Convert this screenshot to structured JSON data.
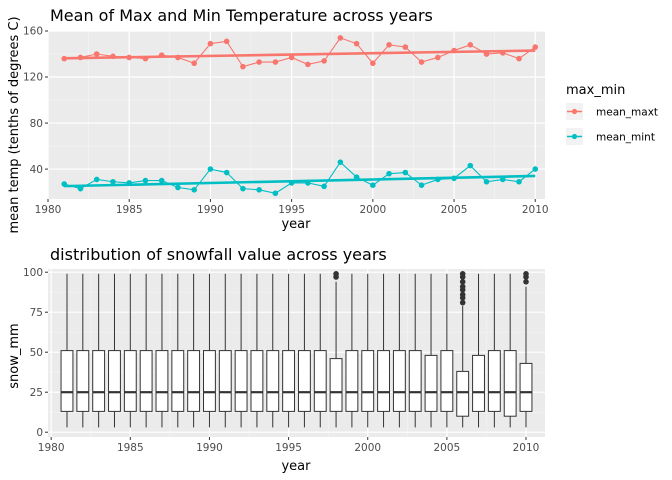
{
  "chart_data": [
    {
      "type": "line",
      "title": "Mean of Max and Min Temperature across years",
      "xlabel": "year",
      "ylabel": "mean temp (tenths of degrees C)",
      "xlim": [
        1980,
        2010.6
      ],
      "ylim": [
        14,
        160
      ],
      "xticks": [
        1980,
        1985,
        1990,
        1995,
        2000,
        2005,
        2010
      ],
      "yticks": [
        40,
        80,
        120,
        160
      ],
      "grid": true,
      "legend_title": "max_min",
      "legend_position": "right",
      "x": [
        1981,
        1982,
        1983,
        1984,
        1985,
        1986,
        1987,
        1988,
        1989,
        1990,
        1991,
        1992,
        1993,
        1994,
        1995,
        1996,
        1997,
        1998,
        1999,
        2000,
        2001,
        2002,
        2003,
        2004,
        2005,
        2006,
        2007,
        2008,
        2009,
        2010
      ],
      "series": [
        {
          "name": "mean_maxt",
          "color": "#F8766D",
          "values": [
            136,
            137,
            140,
            138,
            137,
            136,
            139,
            137,
            132,
            149,
            151,
            129,
            133,
            133,
            137,
            131,
            134,
            154,
            149,
            132,
            148,
            146,
            133,
            137,
            143,
            148,
            140,
            141,
            136,
            146
          ],
          "trend": [
            136.3,
            143.0
          ]
        },
        {
          "name": "mean_mint",
          "color": "#00BFC4",
          "values": [
            27,
            23,
            31,
            29,
            28,
            30,
            30,
            24,
            22,
            40,
            37,
            23,
            22,
            19,
            28,
            28,
            25,
            46,
            33,
            26,
            36,
            37,
            26,
            31,
            32,
            43,
            29,
            31,
            29,
            40
          ],
          "trend": [
            25.2,
            34.0
          ]
        }
      ]
    },
    {
      "type": "box",
      "title": "distribution of snowfall value across years",
      "xlabel": "year",
      "ylabel": "snow_mm",
      "xlim": [
        1979.8,
        2011.2
      ],
      "ylim": [
        -3,
        102
      ],
      "xticks": [
        1980,
        1985,
        1990,
        1995,
        2000,
        2005,
        2010
      ],
      "yticks": [
        0,
        25,
        50,
        75,
        100
      ],
      "grid": true,
      "boxes": [
        {
          "year": 1981,
          "low": 3,
          "q1": 13,
          "median": 25,
          "q3": 51,
          "high": 99,
          "outliers": []
        },
        {
          "year": 1982,
          "low": 3,
          "q1": 13,
          "median": 25,
          "q3": 51,
          "high": 99,
          "outliers": []
        },
        {
          "year": 1983,
          "low": 3,
          "q1": 13,
          "median": 25,
          "q3": 51,
          "high": 99,
          "outliers": []
        },
        {
          "year": 1984,
          "low": 3,
          "q1": 13,
          "median": 25,
          "q3": 51,
          "high": 99,
          "outliers": []
        },
        {
          "year": 1985,
          "low": 3,
          "q1": 13,
          "median": 25,
          "q3": 51,
          "high": 99,
          "outliers": []
        },
        {
          "year": 1986,
          "low": 3,
          "q1": 13,
          "median": 25,
          "q3": 51,
          "high": 99,
          "outliers": []
        },
        {
          "year": 1987,
          "low": 3,
          "q1": 13,
          "median": 25,
          "q3": 51,
          "high": 99,
          "outliers": []
        },
        {
          "year": 1988,
          "low": 3,
          "q1": 13,
          "median": 25,
          "q3": 51,
          "high": 99,
          "outliers": []
        },
        {
          "year": 1989,
          "low": 3,
          "q1": 13,
          "median": 25,
          "q3": 51,
          "high": 99,
          "outliers": []
        },
        {
          "year": 1990,
          "low": 3,
          "q1": 13,
          "median": 25,
          "q3": 51,
          "high": 99,
          "outliers": []
        },
        {
          "year": 1991,
          "low": 3,
          "q1": 13,
          "median": 25,
          "q3": 51,
          "high": 99,
          "outliers": []
        },
        {
          "year": 1992,
          "low": 3,
          "q1": 13,
          "median": 25,
          "q3": 51,
          "high": 99,
          "outliers": []
        },
        {
          "year": 1993,
          "low": 3,
          "q1": 13,
          "median": 25,
          "q3": 51,
          "high": 99,
          "outliers": []
        },
        {
          "year": 1994,
          "low": 3,
          "q1": 13,
          "median": 25,
          "q3": 51,
          "high": 99,
          "outliers": []
        },
        {
          "year": 1995,
          "low": 3,
          "q1": 13,
          "median": 25,
          "q3": 51,
          "high": 99,
          "outliers": []
        },
        {
          "year": 1996,
          "low": 3,
          "q1": 13,
          "median": 25,
          "q3": 51,
          "high": 99,
          "outliers": []
        },
        {
          "year": 1997,
          "low": 3,
          "q1": 13,
          "median": 25,
          "q3": 51,
          "high": 99,
          "outliers": []
        },
        {
          "year": 1998,
          "low": 3,
          "q1": 13,
          "median": 25,
          "q3": 46,
          "high": 94,
          "outliers": [
            97,
            99
          ]
        },
        {
          "year": 1999,
          "low": 3,
          "q1": 13,
          "median": 25,
          "q3": 51,
          "high": 99,
          "outliers": []
        },
        {
          "year": 2000,
          "low": 3,
          "q1": 13,
          "median": 25,
          "q3": 51,
          "high": 99,
          "outliers": []
        },
        {
          "year": 2001,
          "low": 3,
          "q1": 13,
          "median": 25,
          "q3": 51,
          "high": 99,
          "outliers": []
        },
        {
          "year": 2002,
          "low": 3,
          "q1": 13,
          "median": 25,
          "q3": 51,
          "high": 99,
          "outliers": []
        },
        {
          "year": 2003,
          "low": 3,
          "q1": 13,
          "median": 25,
          "q3": 51,
          "high": 99,
          "outliers": []
        },
        {
          "year": 2004,
          "low": 3,
          "q1": 13,
          "median": 25,
          "q3": 48,
          "high": 99,
          "outliers": []
        },
        {
          "year": 2005,
          "low": 3,
          "q1": 13,
          "median": 25,
          "q3": 51,
          "high": 99,
          "outliers": []
        },
        {
          "year": 2006,
          "low": 3,
          "q1": 10,
          "median": 25,
          "q3": 38,
          "high": 79,
          "outliers": [
            81,
            84,
            86,
            89,
            91,
            94,
            97,
            99
          ]
        },
        {
          "year": 2007,
          "low": 3,
          "q1": 13,
          "median": 25,
          "q3": 48,
          "high": 99,
          "outliers": []
        },
        {
          "year": 2008,
          "low": 3,
          "q1": 13,
          "median": 25,
          "q3": 51,
          "high": 99,
          "outliers": []
        },
        {
          "year": 2009,
          "low": 3,
          "q1": 10,
          "median": 25,
          "q3": 51,
          "high": 99,
          "outliers": []
        },
        {
          "year": 2010,
          "low": 3,
          "q1": 13,
          "median": 25,
          "q3": 43,
          "high": 91,
          "outliers": [
            94,
            97,
            99
          ]
        }
      ]
    }
  ]
}
